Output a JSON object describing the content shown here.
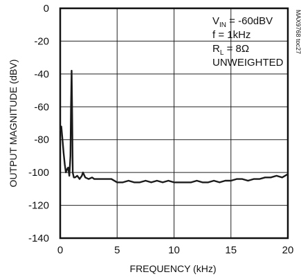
{
  "chart_data": {
    "type": "line",
    "title": "",
    "xlabel": "FREQUENCY (kHz)",
    "ylabel": "OUTPUT MAGNITUDE (dBV)",
    "xlim": [
      0,
      20
    ],
    "ylim": [
      -140,
      0
    ],
    "xticks": [
      0,
      5,
      10,
      15,
      20
    ],
    "xtick_labels": [
      "0",
      "5",
      "10",
      "15",
      "20"
    ],
    "yticks": [
      0,
      -20,
      -40,
      -60,
      -80,
      -100,
      -120,
      -140
    ],
    "ytick_labels": [
      "0",
      "-20",
      "-40",
      "-60",
      "-80",
      "-100",
      "-120",
      "-140"
    ],
    "grid": true,
    "annotations": [
      {
        "main": "V",
        "sub": "IN",
        "rest": " = -60dBV"
      },
      {
        "main": "f = 1kHz",
        "sub": "",
        "rest": ""
      },
      {
        "main": "R",
        "sub": "L",
        "rest": " = 8Ω"
      },
      {
        "main": "UNWEIGHTED",
        "sub": "",
        "rest": ""
      }
    ],
    "side_note": "MAX9768 toc27",
    "series": [
      {
        "color": "#1a1a1a",
        "x": [
          0.0,
          0.1,
          0.2,
          0.3,
          0.4,
          0.5,
          0.6,
          0.7,
          0.8,
          0.9,
          0.95,
          1.0,
          1.05,
          1.1,
          1.2,
          1.3,
          1.5,
          1.7,
          1.9,
          2.0,
          2.2,
          2.5,
          2.8,
          3.0,
          3.5,
          4.0,
          4.5,
          5.0,
          5.5,
          6.0,
          6.5,
          7.0,
          7.5,
          8.0,
          8.5,
          9.0,
          9.5,
          10.0,
          10.5,
          11.0,
          11.5,
          12.0,
          12.5,
          13.0,
          13.5,
          14.0,
          14.5,
          15.0,
          15.5,
          16.0,
          16.5,
          17.0,
          17.5,
          18.0,
          18.5,
          19.0,
          19.5,
          20.0
        ],
        "y": [
          -75,
          -72,
          -80,
          -88,
          -95,
          -100,
          -98,
          -97,
          -102,
          -90,
          -60,
          -38,
          -65,
          -100,
          -103,
          -103,
          -102,
          -104,
          -102,
          -100,
          -103,
          -104,
          -103,
          -104,
          -104,
          -104,
          -104,
          -106,
          -106,
          -105,
          -106,
          -106,
          -105,
          -106,
          -105,
          -106,
          -105,
          -106,
          -106,
          -106,
          -106,
          -105,
          -106,
          -106,
          -105,
          -106,
          -105,
          -105,
          -104,
          -104,
          -105,
          -104,
          -104,
          -103,
          -103,
          -102,
          -103,
          -101
        ]
      }
    ]
  }
}
